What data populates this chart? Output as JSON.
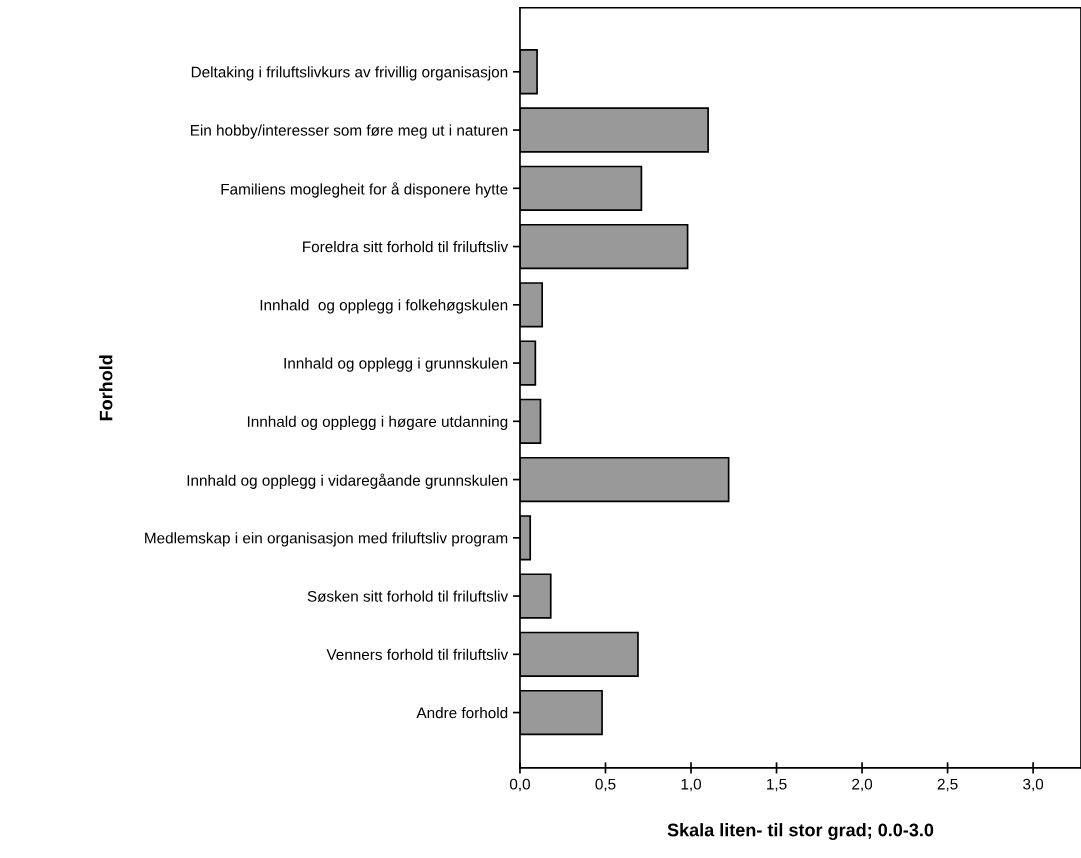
{
  "chart_data": {
    "type": "bar",
    "orientation": "horizontal",
    "xlabel": "Skala liten- til stor grad; 0.0-3.0",
    "ylabel": "Forhold",
    "categories": [
      "Deltaking i friluftslivkurs av frivillig organisasjon",
      "Ein hobby/interesser som føre meg ut i naturen",
      "Familiens moglegheit for å disponere hytte",
      "Foreldra sitt forhold til friluftsliv",
      "Innhald  og opplegg i folkehøgskulen",
      "Innhald og opplegg i grunnskulen",
      "Innhald og opplegg i høgare utdanning",
      "Innhald og opplegg i vidaregåande grunnskulen",
      "Medlemskap i ein organisasjon med friluftsliv program",
      "Søsken sitt forhold til friluftsliv",
      "Venners forhold til friluftsliv",
      "Andre forhold"
    ],
    "values": [
      0.1,
      1.1,
      0.71,
      0.98,
      0.13,
      0.09,
      0.12,
      1.22,
      0.06,
      0.18,
      0.69,
      0.48
    ],
    "color": "#999999",
    "xlim": [
      0,
      3.28
    ],
    "xticks": [
      {
        "value": 0,
        "label": "0,0"
      },
      {
        "value": 0.5,
        "label": "0,5"
      },
      {
        "value": 1.0,
        "label": "1,0"
      },
      {
        "value": 1.5,
        "label": "1,5"
      },
      {
        "value": 2.0,
        "label": "2,0"
      },
      {
        "value": 2.5,
        "label": "2,5"
      },
      {
        "value": 3.0,
        "label": "3,0"
      }
    ],
    "grid": false
  }
}
